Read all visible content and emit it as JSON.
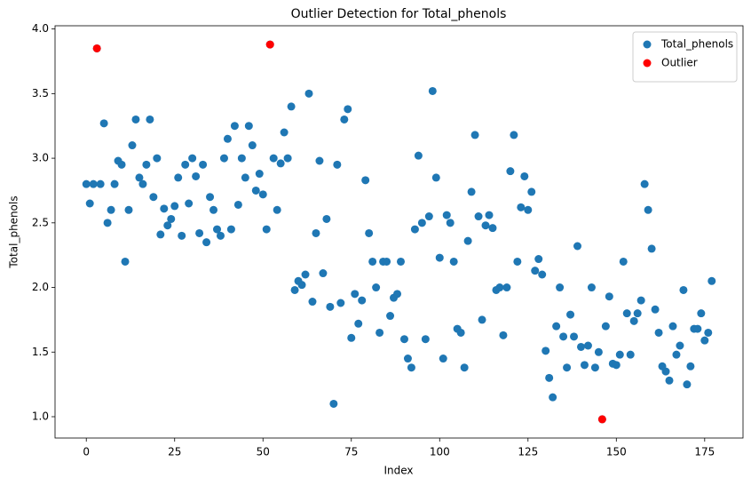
{
  "chart_data": {
    "type": "scatter",
    "title": "Outlier Detection for Total_phenols",
    "xlabel": "Index",
    "ylabel": "Total_phenols",
    "series": [
      {
        "name": "Total_phenols",
        "color": "#1f77b4",
        "x": [
          0,
          1,
          2,
          3,
          4,
          5,
          6,
          7,
          8,
          9,
          10,
          11,
          12,
          13,
          14,
          15,
          16,
          17,
          18,
          19,
          20,
          21,
          22,
          23,
          24,
          25,
          26,
          27,
          28,
          29,
          30,
          31,
          32,
          33,
          34,
          35,
          36,
          37,
          38,
          39,
          40,
          41,
          42,
          43,
          44,
          45,
          46,
          47,
          48,
          49,
          50,
          51,
          52,
          53,
          54,
          55,
          56,
          57,
          58,
          59,
          60,
          61,
          62,
          63,
          64,
          65,
          66,
          67,
          68,
          69,
          70,
          71,
          72,
          73,
          74,
          75,
          76,
          77,
          78,
          79,
          80,
          81,
          82,
          83,
          84,
          85,
          86,
          87,
          88,
          89,
          90,
          91,
          92,
          93,
          94,
          95,
          96,
          97,
          98,
          99,
          100,
          101,
          102,
          103,
          104,
          105,
          106,
          107,
          108,
          109,
          110,
          111,
          112,
          113,
          114,
          115,
          116,
          117,
          118,
          119,
          120,
          121,
          122,
          123,
          124,
          125,
          126,
          127,
          128,
          129,
          130,
          131,
          132,
          133,
          134,
          135,
          136,
          137,
          138,
          139,
          140,
          141,
          142,
          143,
          144,
          145,
          146,
          147,
          148,
          149,
          150,
          151,
          152,
          153,
          154,
          155,
          156,
          157,
          158,
          159,
          160,
          161,
          162,
          163,
          164,
          165,
          166,
          167,
          168,
          169,
          170,
          171,
          172,
          173,
          174,
          175,
          176,
          177
        ],
        "values": [
          2.8,
          2.65,
          2.8,
          3.85,
          2.8,
          3.27,
          2.5,
          2.6,
          2.8,
          2.98,
          2.95,
          2.2,
          2.6,
          3.1,
          3.3,
          2.85,
          2.8,
          2.95,
          3.3,
          2.7,
          3.0,
          2.41,
          2.61,
          2.48,
          2.53,
          2.63,
          2.85,
          2.4,
          2.95,
          2.65,
          3.0,
          2.86,
          2.42,
          2.95,
          2.35,
          2.7,
          2.6,
          2.45,
          2.4,
          3.0,
          3.15,
          2.45,
          3.25,
          2.64,
          3.0,
          2.85,
          3.25,
          3.1,
          2.75,
          2.88,
          2.72,
          2.45,
          3.88,
          3.0,
          2.6,
          2.96,
          3.2,
          3.0,
          3.4,
          1.98,
          2.05,
          2.02,
          2.1,
          3.5,
          1.89,
          2.42,
          2.98,
          2.11,
          2.53,
          1.85,
          1.1,
          2.95,
          1.88,
          3.3,
          3.38,
          1.61,
          1.95,
          1.72,
          1.9,
          2.83,
          2.42,
          2.2,
          2.0,
          1.65,
          2.2,
          2.2,
          1.78,
          1.92,
          1.95,
          2.2,
          1.6,
          1.45,
          1.38,
          2.45,
          3.02,
          2.5,
          1.6,
          2.55,
          3.52,
          2.85,
          2.23,
          1.45,
          2.56,
          2.5,
          2.2,
          1.68,
          1.65,
          1.38,
          2.36,
          2.74,
          3.18,
          2.55,
          1.75,
          2.48,
          2.56,
          2.46,
          1.98,
          2.0,
          1.63,
          2.0,
          2.9,
          3.18,
          2.2,
          2.62,
          2.86,
          2.6,
          2.74,
          2.13,
          2.22,
          2.1,
          1.51,
          1.3,
          1.15,
          1.7,
          2.0,
          1.62,
          1.38,
          1.79,
          1.62,
          2.32,
          1.54,
          1.4,
          1.55,
          2.0,
          1.38,
          1.5,
          0.98,
          1.7,
          1.93,
          1.41,
          1.4,
          1.48,
          2.2,
          1.8,
          1.48,
          1.74,
          1.8,
          1.9,
          2.8,
          2.6,
          2.3,
          1.83,
          1.65,
          1.39,
          1.35,
          1.28,
          1.7,
          1.48,
          1.55,
          1.98,
          1.25,
          1.39,
          1.68,
          1.68,
          1.8,
          1.59,
          1.65,
          2.05
        ]
      },
      {
        "name": "Outlier",
        "color": "#ff0000",
        "x": [
          3,
          52,
          146
        ],
        "values": [
          3.85,
          3.88,
          0.98
        ]
      }
    ],
    "xlim": [
      -8.85,
      185.85
    ],
    "ylim": [
      0.835,
      4.025
    ],
    "xticks": [
      0,
      25,
      50,
      75,
      100,
      125,
      150,
      175
    ],
    "yticks": [
      {
        "value": 1,
        "label": "1.0"
      },
      {
        "value": 1.5,
        "label": "1.5"
      },
      {
        "value": 2,
        "label": "2.0"
      },
      {
        "value": 2.5,
        "label": "2.5"
      },
      {
        "value": 3,
        "label": "3.0"
      },
      {
        "value": 3.5,
        "label": "3.5"
      },
      {
        "value": 4,
        "label": "4.0"
      }
    ],
    "legend": "upper right"
  }
}
